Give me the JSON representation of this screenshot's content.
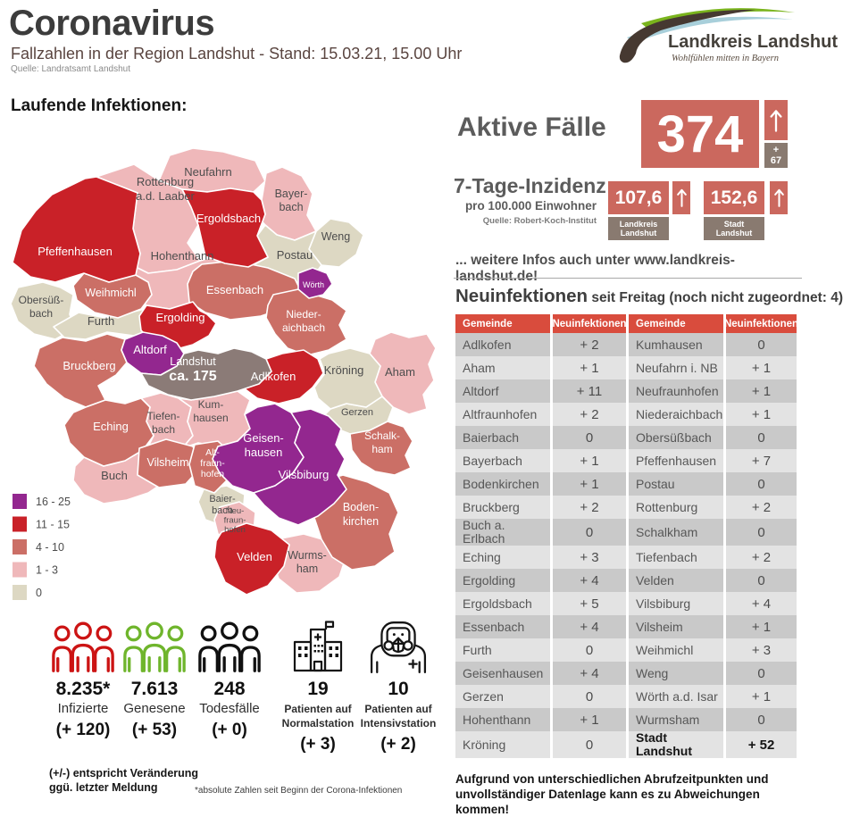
{
  "header": {
    "title": "Coronavirus",
    "subtitle": "Fallzahlen in der Region Landshut - Stand: 15.03.21, 15.00 Uhr",
    "source": "Quelle: Landratsamt Landshut"
  },
  "logo": {
    "name": "Landkreis Landshut",
    "tagline": "Wohlfühlen mitten in Bayern"
  },
  "map_section": {
    "heading": "Laufende Infektionen:",
    "city_color": "#8b7b77",
    "label_dark": "#4d4d4d",
    "legend": [
      {
        "label": "16 - 25",
        "color": "#93278f"
      },
      {
        "label": "11 - 15",
        "color": "#c92128"
      },
      {
        "label": "4 - 10",
        "color": "#cb6f66"
      },
      {
        "label": "1 - 3",
        "color": "#efb8ba"
      },
      {
        "label": "0",
        "color": "#ddd8c3"
      }
    ],
    "regions": [
      {
        "name": "Rottenburg a.d. Laaber",
        "label": [
          "Rottenburg",
          "a.d. Laaber"
        ],
        "level": "1 - 3"
      },
      {
        "name": "Neufahrn",
        "label": [
          "Neufahrn"
        ],
        "level": "1 - 3"
      },
      {
        "name": "Hohenthann",
        "label": [
          "Hohenthann"
        ],
        "level": "1 - 3"
      },
      {
        "name": "Bayerbach",
        "label": [
          "Bayer-",
          "bach"
        ],
        "level": "1 - 3"
      },
      {
        "name": "Weng",
        "label": [
          "Weng"
        ],
        "level": "0"
      },
      {
        "name": "Postau",
        "label": [
          "Postau"
        ],
        "level": "0"
      },
      {
        "name": "Obersüßbach",
        "label": [
          "Obersüß-",
          "bach"
        ],
        "level": "0"
      },
      {
        "name": "Furth",
        "label": [
          "Furth"
        ],
        "level": "0"
      },
      {
        "name": "Tiefenbach",
        "label": [
          "Tiefen-",
          "bach"
        ],
        "level": "1 - 3"
      },
      {
        "name": "Kumhausen",
        "label": [
          "Kum-",
          "hausen"
        ],
        "level": "1 - 3"
      },
      {
        "name": "Aham",
        "label": [
          "Aham"
        ],
        "level": "1 - 3"
      },
      {
        "name": "Gerzen",
        "label": [
          "Gerzen"
        ],
        "level": "0"
      },
      {
        "name": "Kröning",
        "label": [
          "Kröning"
        ],
        "level": "0"
      },
      {
        "name": "Buch",
        "label": [
          "Buch"
        ],
        "level": "1 - 3"
      },
      {
        "name": "Baierbach",
        "label": [
          "Baier-",
          "bach"
        ],
        "level": "0"
      },
      {
        "name": "Neufraunhofen",
        "label": [
          "Neu-",
          "fraun-",
          "hofen"
        ],
        "level": "1 - 3"
      },
      {
        "name": "Wurmsham",
        "label": [
          "Wurms-",
          "ham"
        ],
        "level": "1 - 3"
      },
      {
        "name": "Weihmichl",
        "label": [
          "Weihmichl"
        ],
        "level": "4 - 10"
      },
      {
        "name": "Essenbach",
        "label": [
          "Essenbach"
        ],
        "level": "4 - 10"
      },
      {
        "name": "Niederaichbach",
        "label": [
          "Nieder-",
          "aichbach"
        ],
        "level": "4 - 10"
      },
      {
        "name": "Bruckberg",
        "label": [
          "Bruckberg"
        ],
        "level": "4 - 10"
      },
      {
        "name": "Eching",
        "label": [
          "Eching"
        ],
        "level": "4 - 10"
      },
      {
        "name": "Vilsheim",
        "label": [
          "Vilsheim"
        ],
        "level": "4 - 10"
      },
      {
        "name": "Altfraunhofen",
        "label": [
          "Alt-",
          "fraun-",
          "hofen"
        ],
        "level": "4 - 10"
      },
      {
        "name": "Schalkham",
        "label": [
          "Schalk-",
          "ham"
        ],
        "level": "4 - 10"
      },
      {
        "name": "Bodenkirchen",
        "label": [
          "Boden-",
          "kirchen"
        ],
        "level": "4 - 10"
      },
      {
        "name": "Pfeffenhausen",
        "label": [
          "Pfeffenhausen"
        ],
        "level": "11 - 15"
      },
      {
        "name": "Ergoldsbach",
        "label": [
          "Ergoldsbach"
        ],
        "level": "11 - 15"
      },
      {
        "name": "Ergolding",
        "label": [
          "Ergolding"
        ],
        "level": "11 - 15"
      },
      {
        "name": "Adlkofen",
        "label": [
          "Adlkofen"
        ],
        "level": "11 - 15"
      },
      {
        "name": "Velden",
        "label": [
          "Velden"
        ],
        "level": "11 - 15"
      },
      {
        "name": "Wörth",
        "label": [
          "Wörth"
        ],
        "level": "16 - 25"
      },
      {
        "name": "Altdorf",
        "label": [
          "Altdorf"
        ],
        "level": "16 - 25"
      },
      {
        "name": "Geisenhausen",
        "label": [
          "Geisen-",
          "hausen"
        ],
        "level": "16 - 25"
      },
      {
        "name": "Vilsbiburg",
        "label": [
          "Vilsbiburg"
        ],
        "level": "16 - 25"
      },
      {
        "name": "Landshut",
        "label": [
          "Landshut",
          "ca. 175"
        ],
        "level": "city"
      }
    ]
  },
  "active_cases": {
    "label": "Aktive Fälle",
    "value": "374",
    "delta": [
      "+",
      "67"
    ]
  },
  "incidence": {
    "label": "7-Tage-Inzidenz",
    "sublabel": "pro 100.000 Einwohner",
    "source": "Quelle: Robert-Koch-Institut",
    "items": [
      {
        "value": "107,6",
        "region": [
          "Landkreis",
          "Landshut"
        ]
      },
      {
        "value": "152,6",
        "region": [
          "Stadt",
          "Landshut"
        ]
      }
    ]
  },
  "info_line": "... weitere Infos auch unter www.landkreis-landshut.de!",
  "new_infections": {
    "title": "Neuinfektionen",
    "subtitle": " seit Freitag (noch nicht zugeordnet: 4)",
    "headers": [
      "Gemeinde",
      "Neuinfektionen",
      "Gemeinde",
      "Neuinfektionen"
    ],
    "rows": [
      {
        "cells": [
          "Adlkofen",
          "+ 2",
          "Kumhausen",
          "0"
        ]
      },
      {
        "cells": [
          "Aham",
          "+ 1",
          "Neufahrn i. NB",
          "+ 1"
        ]
      },
      {
        "cells": [
          "Altdorf",
          "+ 11",
          "Neufraunhofen",
          "+ 1"
        ]
      },
      {
        "cells": [
          "Altfraunhofen",
          "+ 2",
          "Niederaichbach",
          "+ 1"
        ]
      },
      {
        "cells": [
          "Baierbach",
          "0",
          "Obersüßbach",
          "0"
        ]
      },
      {
        "cells": [
          "Bayerbach",
          "+ 1",
          "Pfeffenhausen",
          "+ 7"
        ]
      },
      {
        "cells": [
          "Bodenkirchen",
          "+ 1",
          "Postau",
          "0"
        ]
      },
      {
        "cells": [
          "Bruckberg",
          "+ 2",
          "Rottenburg",
          "+ 2"
        ]
      },
      {
        "cells": [
          "Buch a. Erlbach",
          "0",
          "Schalkham",
          "0"
        ]
      },
      {
        "cells": [
          "Eching",
          "+ 3",
          "Tiefenbach",
          "+ 2"
        ]
      },
      {
        "cells": [
          "Ergolding",
          "+ 4",
          "Velden",
          "0"
        ]
      },
      {
        "cells": [
          "Ergoldsbach",
          "+ 5",
          "Vilsbiburg",
          "+ 4"
        ]
      },
      {
        "cells": [
          "Essenbach",
          "+ 4",
          "Vilsheim",
          "+ 1"
        ]
      },
      {
        "cells": [
          "Furth",
          "0",
          "Weihmichl",
          "+ 3"
        ]
      },
      {
        "cells": [
          "Geisenhausen",
          "+ 4",
          "Weng",
          "0"
        ]
      },
      {
        "cells": [
          "Gerzen",
          "0",
          "Wörth a.d. Isar",
          "+ 1"
        ]
      },
      {
        "cells": [
          "Hohenthann",
          "+ 1",
          "Wurmsham",
          "0"
        ]
      },
      {
        "cells": [
          "Kröning",
          "0",
          "Stadt Landshut",
          "+ 52"
        ],
        "highlight_right": true
      }
    ],
    "disclaimer": [
      "Aufgrund von unterschiedlichen Abrufzeitpunkten und",
      "unvollständiger Datenlage kann es zu Abweichungen kommen!"
    ]
  },
  "stats": {
    "items": [
      {
        "icon": "infected-people-icon",
        "color": "#cc1414",
        "value": "8.235*",
        "label": [
          "Infizierte"
        ],
        "delta": "(+ 120)"
      },
      {
        "icon": "recovered-people-icon",
        "color": "#6fb52c",
        "value": "7.613",
        "label": [
          "Genesene"
        ],
        "delta": "(+ 53)"
      },
      {
        "icon": "deaths-people-icon",
        "color": "#111111",
        "value": "248",
        "label": [
          "Todesfälle"
        ],
        "delta": "(+ 0)"
      },
      {
        "icon": "hospital-icon",
        "color": "#111111",
        "value": "19",
        "label": [
          "Patienten auf",
          "Normalstation"
        ],
        "delta": "(+ 3)"
      },
      {
        "icon": "icu-ppe-icon",
        "color": "#111111",
        "value": "10",
        "label": [
          "Patienten auf",
          "Intensivstation"
        ],
        "delta": "(+ 2)"
      }
    ],
    "note": [
      "(+/-) entspricht Veränderung",
      "ggü. letzter Meldung"
    ],
    "footnote": "*absolute Zahlen seit Beginn der Corona-Infektionen"
  },
  "chart_data": [
    {
      "type": "heatmap",
      "title": "Laufende Infektionen (choropleth of municipalities, Landkreis Landshut)",
      "legend_buckets": [
        "16 - 25",
        "11 - 15",
        "4 - 10",
        "1 - 3",
        "0"
      ],
      "series": [
        {
          "name": "16 - 25",
          "values": [
            "Altdorf",
            "Wörth",
            "Geisenhausen",
            "Vilsbiburg"
          ]
        },
        {
          "name": "11 - 15",
          "values": [
            "Pfeffenhausen",
            "Ergoldsbach",
            "Ergolding",
            "Adlkofen",
            "Velden"
          ]
        },
        {
          "name": "4 - 10",
          "values": [
            "Weihmichl",
            "Essenbach",
            "Niederaichbach",
            "Bruckberg",
            "Eching",
            "Vilsheim",
            "Altfraunhofen",
            "Schalkham",
            "Bodenkirchen"
          ]
        },
        {
          "name": "1 - 3",
          "values": [
            "Rottenburg a.d. Laaber",
            "Neufahrn",
            "Hohenthann",
            "Bayerbach",
            "Tiefenbach",
            "Kumhausen",
            "Aham",
            "Buch",
            "Neufraunhofen",
            "Wurmsham"
          ]
        },
        {
          "name": "0",
          "values": [
            "Weng",
            "Postau",
            "Obersüßbach",
            "Furth",
            "Gerzen",
            "Kröning",
            "Baierbach"
          ]
        },
        {
          "name": "city (Stadt Landshut)",
          "values": [
            "Landshut ca. 175"
          ]
        }
      ]
    },
    {
      "type": "table",
      "title": "Neuinfektionen seit Freitag",
      "categories": [
        "Adlkofen",
        "Aham",
        "Altdorf",
        "Altfraunhofen",
        "Baierbach",
        "Bayerbach",
        "Bodenkirchen",
        "Bruckberg",
        "Buch a. Erlbach",
        "Eching",
        "Ergolding",
        "Ergoldsbach",
        "Essenbach",
        "Furth",
        "Geisenhausen",
        "Gerzen",
        "Hohenthann",
        "Kröning",
        "Kumhausen",
        "Neufahrn i. NB",
        "Neufraunhofen",
        "Niederaichbach",
        "Obersüßbach",
        "Pfeffenhausen",
        "Postau",
        "Rottenburg",
        "Schalkham",
        "Tiefenbach",
        "Velden",
        "Vilsbiburg",
        "Vilsheim",
        "Weihmichl",
        "Weng",
        "Wörth a.d. Isar",
        "Wurmsham",
        "Stadt Landshut"
      ],
      "values": [
        2,
        1,
        11,
        2,
        0,
        1,
        1,
        2,
        0,
        3,
        4,
        5,
        4,
        0,
        4,
        0,
        1,
        0,
        0,
        1,
        1,
        1,
        0,
        7,
        0,
        2,
        0,
        2,
        0,
        4,
        1,
        3,
        0,
        1,
        0,
        52
      ]
    }
  ]
}
